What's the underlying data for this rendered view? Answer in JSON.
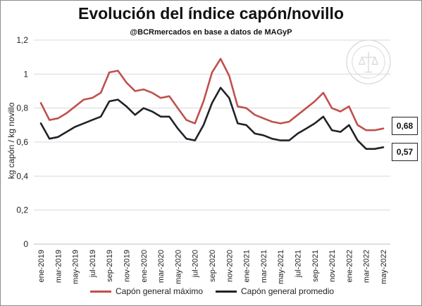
{
  "header": {
    "title": "Evolución del índice capón/novillo",
    "subtitle": "@BCRmercados en base a datos de MAGyP"
  },
  "legend": [
    {
      "label": "Capón general máximo",
      "color": "#c0504d"
    },
    {
      "label": "Capón general promedio",
      "color": "#1f2328"
    }
  ],
  "end_labels": {
    "maximo": "0,68",
    "promedio": "0,57"
  },
  "watermark": {
    "text": "BOLSA DE COMERCIO DE ROSARIO"
  },
  "chart_data": {
    "type": "line",
    "title": "Evolución del índice capón/novillo",
    "ylabel": "kg capón / kg novillo",
    "xlabel": "",
    "ylim": [
      0,
      1.2
    ],
    "yticks": [
      "0",
      "0,2",
      "0,4",
      "0,6",
      "0,8",
      "1",
      "1,2"
    ],
    "ytick_values": [
      0,
      0.2,
      0.4,
      0.6,
      0.8,
      1.0,
      1.2
    ],
    "grid": true,
    "legend_position": "bottom",
    "xticklabels": [
      "ene-2019",
      "mar-2019",
      "may-2019",
      "jul-2019",
      "sep-2019",
      "nov-2019",
      "ene-2020",
      "mar-2020",
      "may-2020",
      "jul-2020",
      "sep-2020",
      "nov-2020",
      "ene-2021",
      "mar-2021",
      "may-2021",
      "jul-2021",
      "sep-2021",
      "nov-2021",
      "ene-2022",
      "mar-2022",
      "may-2022"
    ],
    "series": [
      {
        "name": "Capón general máximo",
        "color": "#c0504d",
        "values": [
          0.83,
          0.73,
          0.74,
          0.77,
          0.81,
          0.85,
          0.86,
          0.89,
          1.01,
          1.02,
          0.95,
          0.9,
          0.91,
          0.89,
          0.86,
          0.87,
          0.8,
          0.73,
          0.71,
          0.84,
          1.01,
          1.09,
          0.99,
          0.81,
          0.8,
          0.76,
          0.74,
          0.72,
          0.71,
          0.72,
          0.76,
          0.8,
          0.84,
          0.89,
          0.8,
          0.78,
          0.81,
          0.7,
          0.67,
          0.67,
          0.68
        ]
      },
      {
        "name": "Capón general promedio",
        "color": "#1f2328",
        "values": [
          0.71,
          0.62,
          0.63,
          0.66,
          0.69,
          0.71,
          0.73,
          0.75,
          0.84,
          0.85,
          0.81,
          0.76,
          0.8,
          0.78,
          0.75,
          0.75,
          0.68,
          0.62,
          0.61,
          0.7,
          0.83,
          0.92,
          0.86,
          0.71,
          0.7,
          0.65,
          0.64,
          0.62,
          0.61,
          0.61,
          0.65,
          0.68,
          0.71,
          0.75,
          0.67,
          0.66,
          0.7,
          0.61,
          0.56,
          0.56,
          0.57
        ]
      }
    ]
  }
}
